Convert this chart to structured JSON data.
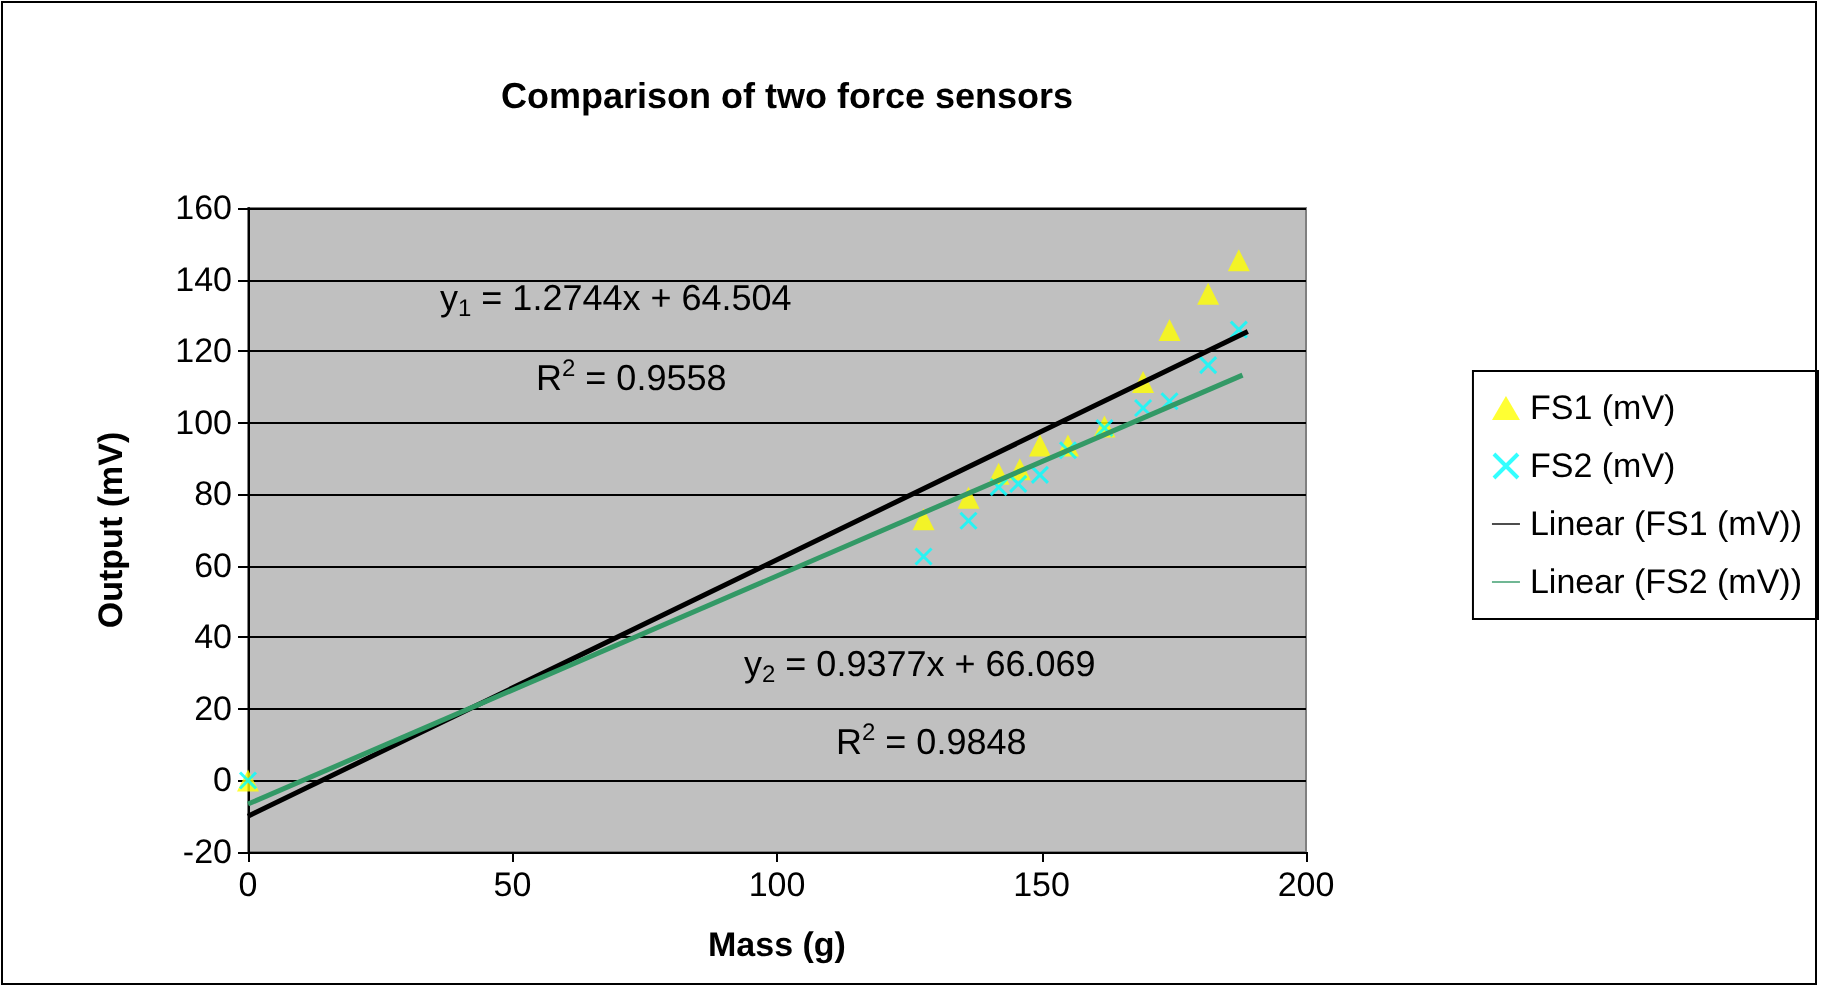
{
  "chart_data": {
    "type": "scatter",
    "title": "Comparison of two force sensors",
    "xlabel": "Mass (g)",
    "ylabel": "Output (mV)",
    "xlim": [
      0,
      200
    ],
    "xticks": [
      0,
      50,
      100,
      150,
      200
    ],
    "ylim": [
      -20,
      160
    ],
    "yticks": [
      -20,
      0,
      20,
      40,
      60,
      80,
      100,
      120,
      140,
      160
    ],
    "grid": "y",
    "legend": "right",
    "series": [
      {
        "name": "FS1 (mV)",
        "marker": "triangle",
        "color": "#ffff00",
        "x": [
          0,
          127.7,
          136.2,
          141.9,
          145.9,
          149.7,
          155,
          161.9,
          169.2,
          174.2,
          181.5,
          187.3
        ],
        "values": [
          0,
          73,
          79,
          85.7,
          87,
          93.6,
          93.6,
          98.9,
          111.4,
          125.9,
          136,
          145.4
        ]
      },
      {
        "name": "FS2 (mV)",
        "marker": "cross",
        "color": "#00ffff",
        "x": [
          0,
          127.7,
          136.2,
          141.9,
          145.6,
          149.7,
          155,
          161.9,
          169.2,
          174.2,
          181.5,
          187.3
        ],
        "values": [
          0,
          62.6,
          72.6,
          82,
          82.9,
          85.4,
          92.3,
          98.5,
          104.1,
          106,
          116.1,
          126
        ]
      },
      {
        "name": "Linear (FS1 (mV))",
        "type": "line",
        "marker": "none",
        "color": "#000000",
        "x": [
          0,
          189
        ],
        "values": [
          -10,
          125.5
        ]
      },
      {
        "name": "Linear (FS2 (mV))",
        "type": "line",
        "marker": "none",
        "color": "#339966",
        "x": [
          0,
          188
        ],
        "values": [
          -6.6,
          113.3
        ]
      }
    ],
    "annotations": [
      "y$_{1}$ = 1.2744x + 64.504",
      "R$^{2}$ = 0.9558",
      "y$_{2}$ = 0.9377x + 66.069",
      "R$^{2}$ = 0.9848"
    ]
  }
}
